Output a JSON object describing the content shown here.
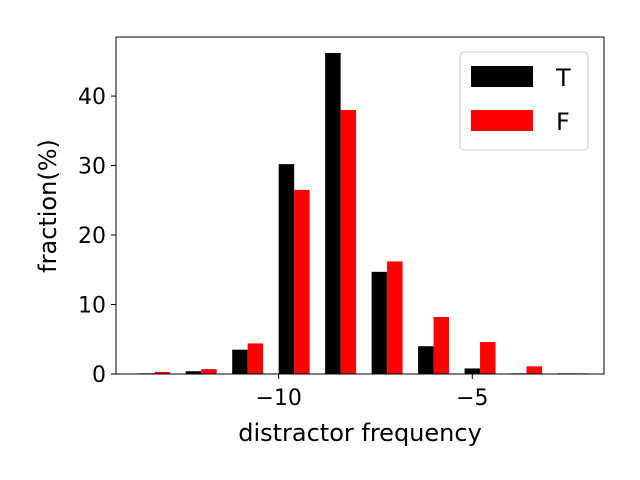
{
  "chart_data": {
    "type": "bar",
    "xlabel": "distractor frequency",
    "ylabel": "fraction(%)",
    "xlim": [
      -14.2,
      -1.6
    ],
    "ylim": [
      0,
      48.5
    ],
    "x_ticks": [
      -10,
      -5
    ],
    "x_tick_labels": [
      "−10",
      "−5"
    ],
    "y_ticks": [
      0,
      10,
      20,
      30,
      40
    ],
    "y_tick_labels": [
      "0",
      "10",
      "20",
      "30",
      "40"
    ],
    "grid": false,
    "legend_position": "top-right",
    "bin_centers": [
      -13.2,
      -12.0,
      -10.8,
      -9.6,
      -8.4,
      -7.2,
      -6.0,
      -4.8,
      -3.6,
      -2.4
    ],
    "bar_width": 0.4,
    "series": [
      {
        "name": "T",
        "color": "#000000",
        "values": [
          0.1,
          0.4,
          3.5,
          30.2,
          46.2,
          14.7,
          4.0,
          0.8,
          0.1,
          0.1
        ]
      },
      {
        "name": "F",
        "color": "#ff0000",
        "values": [
          0.3,
          0.7,
          4.4,
          26.5,
          38.0,
          16.2,
          8.2,
          4.6,
          1.1,
          0.1
        ]
      }
    ]
  }
}
